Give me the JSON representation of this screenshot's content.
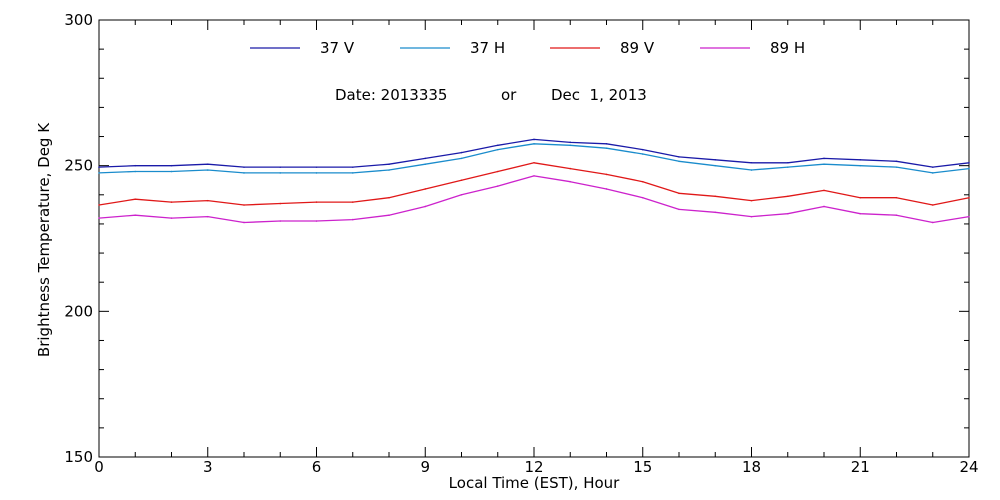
{
  "chart_data": {
    "type": "line",
    "title": "",
    "xlabel": "Local Time (EST), Hour",
    "ylabel": "Brightness Temperature, Deg K",
    "xlim": [
      0,
      24
    ],
    "ylim": [
      150,
      300
    ],
    "xticks": [
      0,
      3,
      6,
      9,
      12,
      15,
      18,
      21,
      24
    ],
    "yticks": [
      150,
      200,
      250,
      300
    ],
    "grid": false,
    "legend_position": "top",
    "date_text": {
      "date_label": "Date: 2013335",
      "separator": "or",
      "calendar_date": "Dec  1, 2013"
    },
    "x": [
      0,
      1,
      2,
      3,
      4,
      5,
      6,
      7,
      8,
      9,
      10,
      11,
      12,
      13,
      14,
      15,
      16,
      17,
      18,
      19,
      20,
      21,
      22,
      23,
      24
    ],
    "series": [
      {
        "name": "37 V",
        "color": "#1a1aa8",
        "values": [
          249.5,
          250,
          250,
          250.5,
          249.5,
          249.5,
          249.5,
          249.5,
          250.5,
          252.5,
          254.5,
          257,
          259,
          258,
          257.5,
          255.5,
          253,
          252,
          251,
          251,
          252.5,
          252,
          251.5,
          249.5,
          251
        ]
      },
      {
        "name": "37 H",
        "color": "#1a8ccc",
        "values": [
          247.5,
          248,
          248,
          248.5,
          247.5,
          247.5,
          247.5,
          247.5,
          248.5,
          250.5,
          252.5,
          255.5,
          257.5,
          257,
          256,
          254,
          251.5,
          250,
          248.5,
          249.5,
          250.5,
          250,
          249.5,
          247.5,
          249
        ]
      },
      {
        "name": "89 V",
        "color": "#e01818",
        "values": [
          236.5,
          238.5,
          237.5,
          238,
          236.5,
          237,
          237.5,
          237.5,
          239,
          242,
          245,
          248,
          251,
          249,
          247,
          244.5,
          240.5,
          239.5,
          238,
          239.5,
          241.5,
          239,
          239,
          236.5,
          239
        ]
      },
      {
        "name": "89 H",
        "color": "#cc22cc",
        "values": [
          232,
          233,
          232,
          232.5,
          230.5,
          231,
          231,
          231.5,
          233,
          236,
          240,
          243,
          246.5,
          244.5,
          242,
          239,
          235,
          234,
          232.5,
          233.5,
          236,
          233.5,
          233,
          230.5,
          232.5
        ]
      }
    ]
  }
}
